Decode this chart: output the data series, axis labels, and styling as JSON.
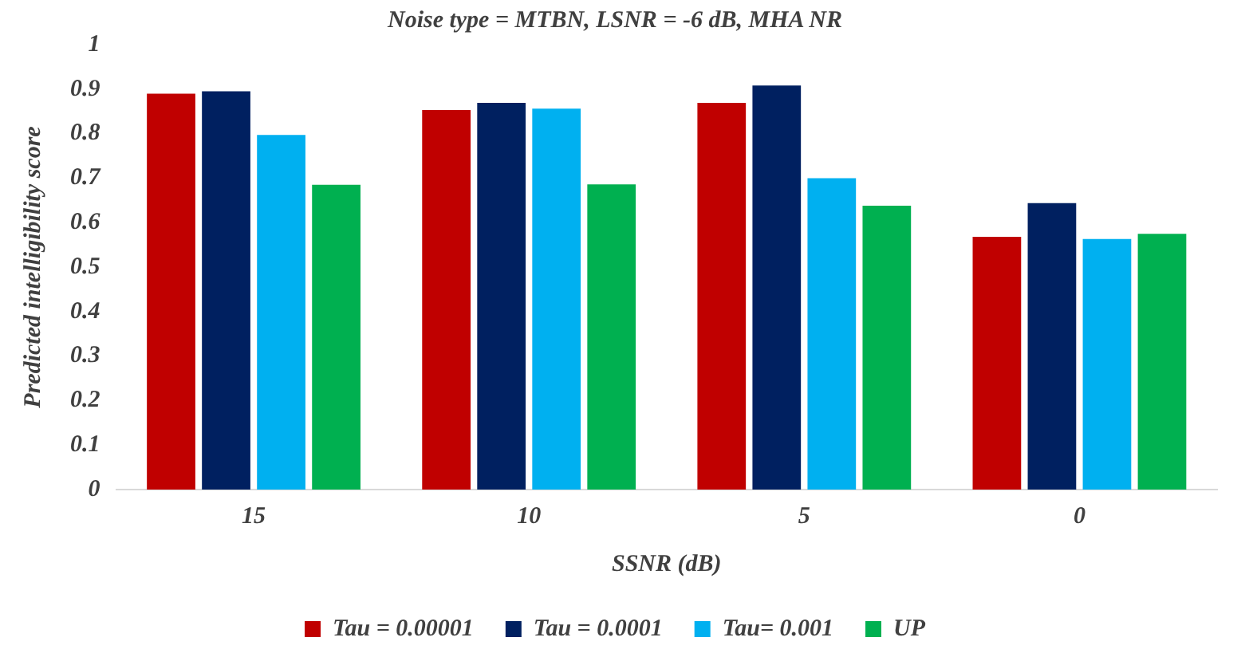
{
  "chart_data": {
    "type": "bar",
    "title": "Noise type = MTBN, LSNR = -6 dB, MHA NR",
    "xlabel": "SSNR (dB)",
    "ylabel": "Predicted intelligibility score",
    "categories": [
      "15",
      "10",
      "5",
      "0"
    ],
    "series": [
      {
        "name": "Tau = 0.00001",
        "color": "#c00000",
        "values": [
          0.89,
          0.853,
          0.869,
          0.568
        ]
      },
      {
        "name": "Tau = 0.0001",
        "color": "#002060",
        "values": [
          0.895,
          0.869,
          0.908,
          0.644
        ]
      },
      {
        "name": "Tau= 0.001",
        "color": "#00b0f0",
        "values": [
          0.797,
          0.856,
          0.7,
          0.563
        ]
      },
      {
        "name": "UP",
        "color": "#00b050",
        "values": [
          0.685,
          0.686,
          0.638,
          0.575
        ]
      }
    ],
    "ylim": [
      0,
      1
    ],
    "yticks": [
      0,
      0.1,
      0.2,
      0.3,
      0.4,
      0.5,
      0.6,
      0.7,
      0.8,
      0.9,
      1
    ],
    "grid": false,
    "legend": "bottom"
  }
}
